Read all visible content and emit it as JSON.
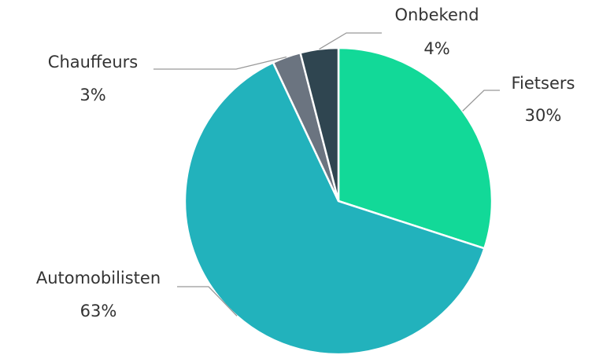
{
  "chart_data": {
    "type": "pie",
    "categories": [
      "Fietsers",
      "Automobilisten",
      "Chauffeurs",
      "Onbekend"
    ],
    "values": [
      30,
      63,
      3,
      4
    ],
    "value_labels": [
      "30%",
      "63%",
      "3%",
      "4%"
    ],
    "colors": [
      "#12d998",
      "#22b2bc",
      "#6b7480",
      "#2f4550"
    ]
  }
}
